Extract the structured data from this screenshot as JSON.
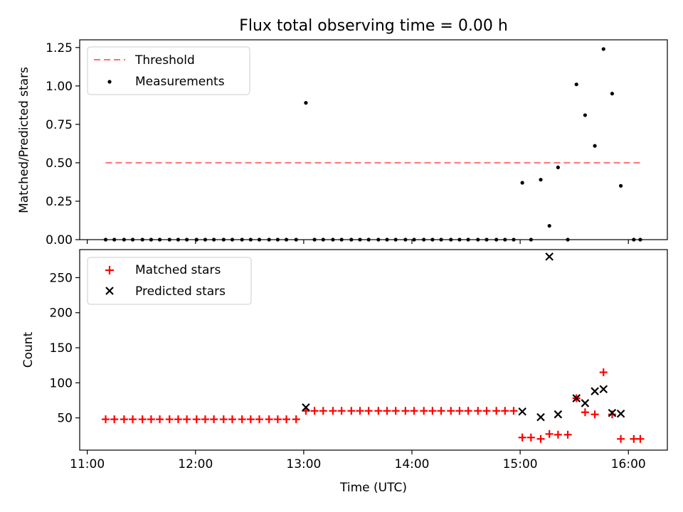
{
  "chart_data": [
    {
      "type": "scatter",
      "title": "Flux total observing time = 0.00 h",
      "xlabel": "",
      "ylabel": "Matched/Predicted stars",
      "xlim_hours": [
        10.93,
        16.36
      ],
      "ylim": [
        0,
        1.3
      ],
      "yticks": [
        0.0,
        0.25,
        0.5,
        0.75,
        1.0,
        1.25
      ],
      "ytick_labels": [
        "0.00",
        "0.25",
        "0.50",
        "0.75",
        "1.00",
        "1.25"
      ],
      "xticks_hours": [
        11,
        12,
        13,
        14,
        15,
        16
      ],
      "legend_position": "upper-left",
      "threshold": {
        "name": "Threshold",
        "value": 0.5,
        "x_start": 11.17,
        "x_end": 16.12,
        "color": "#ff7070"
      },
      "series": [
        {
          "name": "Measurements",
          "marker": "dot",
          "color": "#000000",
          "points": [
            [
              11.17,
              0
            ],
            [
              11.25,
              0
            ],
            [
              11.34,
              0
            ],
            [
              11.42,
              0
            ],
            [
              11.51,
              0
            ],
            [
              11.59,
              0
            ],
            [
              11.67,
              0
            ],
            [
              11.76,
              0
            ],
            [
              11.84,
              0
            ],
            [
              11.92,
              0
            ],
            [
              12.01,
              0
            ],
            [
              12.09,
              0
            ],
            [
              12.17,
              0
            ],
            [
              12.26,
              0
            ],
            [
              12.34,
              0
            ],
            [
              12.43,
              0
            ],
            [
              12.51,
              0
            ],
            [
              12.59,
              0
            ],
            [
              12.68,
              0
            ],
            [
              12.76,
              0
            ],
            [
              12.84,
              0
            ],
            [
              12.93,
              0
            ],
            [
              13.02,
              0.89
            ],
            [
              13.1,
              0
            ],
            [
              13.18,
              0
            ],
            [
              13.27,
              0
            ],
            [
              13.35,
              0
            ],
            [
              13.44,
              0
            ],
            [
              13.52,
              0
            ],
            [
              13.6,
              0
            ],
            [
              13.69,
              0
            ],
            [
              13.77,
              0
            ],
            [
              13.85,
              0
            ],
            [
              13.94,
              0
            ],
            [
              14.02,
              0
            ],
            [
              14.11,
              0
            ],
            [
              14.19,
              0
            ],
            [
              14.27,
              0
            ],
            [
              14.36,
              0
            ],
            [
              14.44,
              0
            ],
            [
              14.52,
              0
            ],
            [
              14.61,
              0
            ],
            [
              14.69,
              0
            ],
            [
              14.78,
              0
            ],
            [
              14.86,
              0
            ],
            [
              14.94,
              0
            ],
            [
              15.02,
              0.37
            ],
            [
              15.1,
              0
            ],
            [
              15.19,
              0.39
            ],
            [
              15.27,
              0.09
            ],
            [
              15.35,
              0.47
            ],
            [
              15.44,
              0
            ],
            [
              15.52,
              1.01
            ],
            [
              15.6,
              0.81
            ],
            [
              15.69,
              0.61
            ],
            [
              15.77,
              1.24
            ],
            [
              15.85,
              0.95
            ],
            [
              15.93,
              0.35
            ],
            [
              16.05,
              0
            ],
            [
              16.11,
              0
            ]
          ]
        }
      ]
    },
    {
      "type": "scatter",
      "title": "",
      "xlabel": "Time (UTC)",
      "ylabel": "Count",
      "xlim_hours": [
        10.93,
        16.36
      ],
      "ylim": [
        4.0,
        290
      ],
      "yticks": [
        50,
        100,
        150,
        200,
        250
      ],
      "ytick_labels": [
        "50",
        "100",
        "150",
        "200",
        "250"
      ],
      "xticks_hours": [
        11,
        12,
        13,
        14,
        15,
        16
      ],
      "xtick_labels": [
        "11:00",
        "12:00",
        "13:00",
        "14:00",
        "15:00",
        "16:00"
      ],
      "legend_position": "upper-left",
      "series": [
        {
          "name": "Matched stars",
          "marker": "plus",
          "color": "#ff0000",
          "points": [
            [
              11.17,
              48
            ],
            [
              11.25,
              48
            ],
            [
              11.34,
              48
            ],
            [
              11.42,
              48
            ],
            [
              11.51,
              48
            ],
            [
              11.59,
              48
            ],
            [
              11.67,
              48
            ],
            [
              11.76,
              48
            ],
            [
              11.84,
              48
            ],
            [
              11.92,
              48
            ],
            [
              12.01,
              48
            ],
            [
              12.09,
              48
            ],
            [
              12.17,
              48
            ],
            [
              12.26,
              48
            ],
            [
              12.34,
              48
            ],
            [
              12.43,
              48
            ],
            [
              12.51,
              48
            ],
            [
              12.59,
              48
            ],
            [
              12.68,
              48
            ],
            [
              12.76,
              48
            ],
            [
              12.84,
              48
            ],
            [
              12.93,
              48
            ],
            [
              13.02,
              60
            ],
            [
              13.1,
              60
            ],
            [
              13.18,
              60
            ],
            [
              13.27,
              60
            ],
            [
              13.35,
              60
            ],
            [
              13.44,
              60
            ],
            [
              13.52,
              60
            ],
            [
              13.6,
              60
            ],
            [
              13.69,
              60
            ],
            [
              13.77,
              60
            ],
            [
              13.85,
              60
            ],
            [
              13.94,
              60
            ],
            [
              14.02,
              60
            ],
            [
              14.11,
              60
            ],
            [
              14.19,
              60
            ],
            [
              14.27,
              60
            ],
            [
              14.36,
              60
            ],
            [
              14.44,
              60
            ],
            [
              14.52,
              60
            ],
            [
              14.61,
              60
            ],
            [
              14.69,
              60
            ],
            [
              14.78,
              60
            ],
            [
              14.86,
              60
            ],
            [
              14.94,
              60
            ],
            [
              15.02,
              22
            ],
            [
              15.1,
              22
            ],
            [
              15.19,
              20
            ],
            [
              15.27,
              27
            ],
            [
              15.35,
              26
            ],
            [
              15.44,
              26
            ],
            [
              15.52,
              78
            ],
            [
              15.6,
              58
            ],
            [
              15.69,
              55
            ],
            [
              15.77,
              115
            ],
            [
              15.85,
              55
            ],
            [
              15.93,
              20
            ],
            [
              16.05,
              20
            ],
            [
              16.11,
              20
            ]
          ]
        },
        {
          "name": "Predicted stars",
          "marker": "x",
          "color": "#000000",
          "points": [
            [
              13.02,
              65
            ],
            [
              15.02,
              59
            ],
            [
              15.19,
              51
            ],
            [
              15.27,
              280
            ],
            [
              15.35,
              55
            ],
            [
              15.52,
              78
            ],
            [
              15.6,
              71
            ],
            [
              15.69,
              88
            ],
            [
              15.77,
              91
            ],
            [
              15.85,
              57
            ],
            [
              15.93,
              56
            ]
          ]
        }
      ]
    }
  ]
}
